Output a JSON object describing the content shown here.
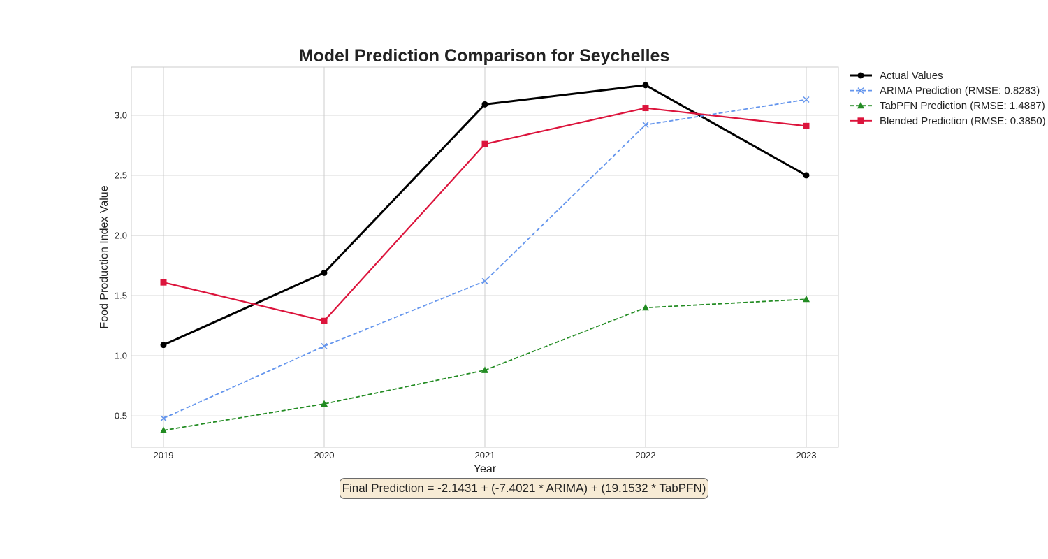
{
  "chart_data": {
    "type": "line",
    "title": "Model Prediction Comparison for Seychelles",
    "xlabel": "Year",
    "ylabel": "Food Production Index Value",
    "x": [
      2019,
      2020,
      2021,
      2022,
      2023
    ],
    "xticks": [
      "2019",
      "2020",
      "2021",
      "2022",
      "2023"
    ],
    "ylim": [
      0.24,
      3.4
    ],
    "yticks": [
      0.5,
      1.0,
      1.5,
      2.0,
      2.5,
      3.0
    ],
    "ytick_labels": [
      "0.5",
      "1.0",
      "1.5",
      "2.0",
      "2.5",
      "3.0"
    ],
    "grid": true,
    "legend_position": "outside-top-right",
    "series": [
      {
        "name": "Actual Values",
        "values": [
          1.09,
          1.69,
          3.09,
          3.25,
          2.5
        ],
        "color": "#000000",
        "marker": "circle",
        "dash": "solid"
      },
      {
        "name": "ARIMA Prediction (RMSE: 0.8283)",
        "values": [
          0.48,
          1.08,
          1.62,
          2.92,
          3.13
        ],
        "color": "#6495ed",
        "marker": "x",
        "dash": "dashed"
      },
      {
        "name": "TabPFN Prediction (RMSE: 1.4887)",
        "values": [
          0.38,
          0.6,
          0.88,
          1.4,
          1.47
        ],
        "color": "#228b22",
        "marker": "triangle",
        "dash": "dashed"
      },
      {
        "name": "Blended Prediction (RMSE: 0.3850)",
        "values": [
          1.61,
          1.29,
          2.76,
          3.06,
          2.91
        ],
        "color": "#dc143c",
        "marker": "square",
        "dash": "solid"
      }
    ],
    "annotation": "Final Prediction = -2.1431 + (-7.4021 * ARIMA) + (19.1532 * TabPFN)"
  }
}
